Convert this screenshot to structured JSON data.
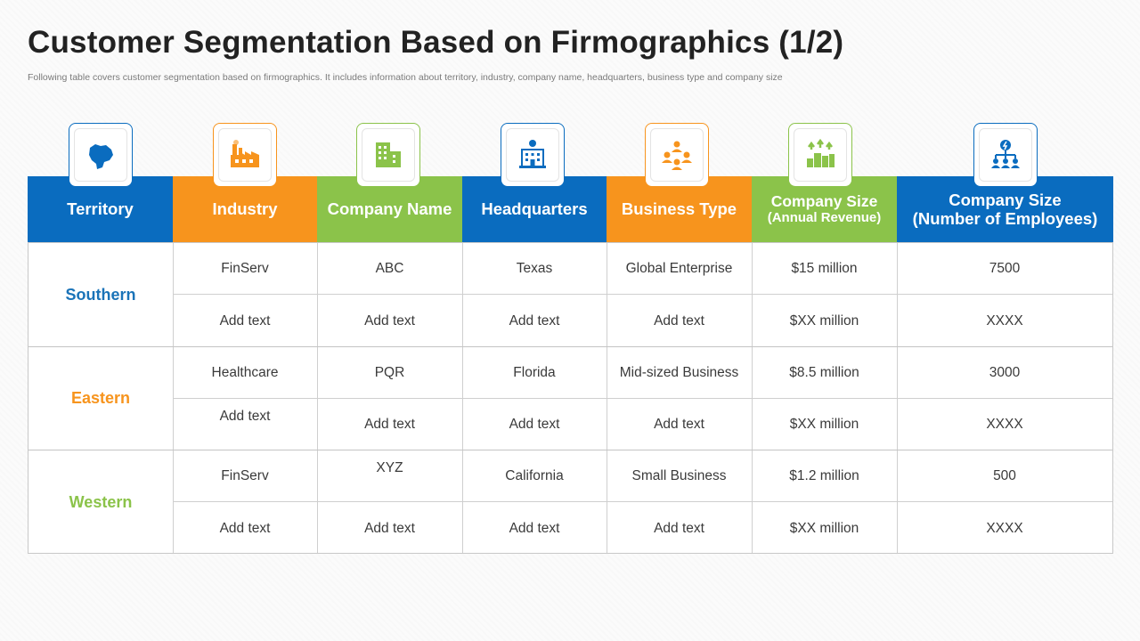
{
  "title": "Customer Segmentation Based on Firmographics (1/2)",
  "subtitle": "Following table covers customer segmentation based on firmographics. It includes information about territory, industry, company name, headquarters, business type and company size",
  "colors": {
    "blue": "#0a6cbf",
    "orange": "#f7941d",
    "green": "#8bc34a"
  },
  "headers": [
    {
      "line1": "Territory",
      "line2": "",
      "icon": "map-icon",
      "color": "blue"
    },
    {
      "line1": "Industry",
      "line2": "",
      "icon": "factory-icon",
      "color": "orange"
    },
    {
      "line1": "Company Name",
      "line2": "",
      "icon": "buildings-icon",
      "color": "green"
    },
    {
      "line1": "Headquarters",
      "line2": "",
      "icon": "headquarters-icon",
      "color": "blue"
    },
    {
      "line1": "Business Type",
      "line2": "",
      "icon": "people-network-icon",
      "color": "orange"
    },
    {
      "line1": "Company Size",
      "line2": "(Annual Revenue)",
      "icon": "growth-city-icon",
      "color": "green"
    },
    {
      "line1": "Company Size",
      "line2": "(Number of Employees)",
      "icon": "org-chart-icon",
      "color": "blue"
    }
  ],
  "territories": [
    {
      "name": "Southern",
      "color": "#1a73b8",
      "rows": [
        [
          "FinServ",
          "ABC",
          "Texas",
          "Global Enterprise",
          "$15 million",
          "7500"
        ],
        [
          "Add text",
          "Add text",
          "Add text",
          "Add text",
          "$XX million",
          "XXXX"
        ]
      ]
    },
    {
      "name": "Eastern",
      "color": "#f7941d",
      "rows": [
        [
          "Healthcare",
          "PQR",
          "Florida",
          "Mid-sized Business",
          "$8.5 million",
          "3000"
        ],
        [
          "Add text",
          "Add text",
          "Add text",
          "Add text",
          "$XX million",
          "XXXX"
        ]
      ]
    },
    {
      "name": "Western",
      "color": "#8bc34a",
      "rows": [
        [
          "FinServ",
          "XYZ",
          "California",
          "Small Business",
          "$1.2 million",
          "500"
        ],
        [
          "Add text",
          "Add text",
          "Add text",
          "Add text",
          "$XX million",
          "XXXX"
        ]
      ]
    }
  ]
}
